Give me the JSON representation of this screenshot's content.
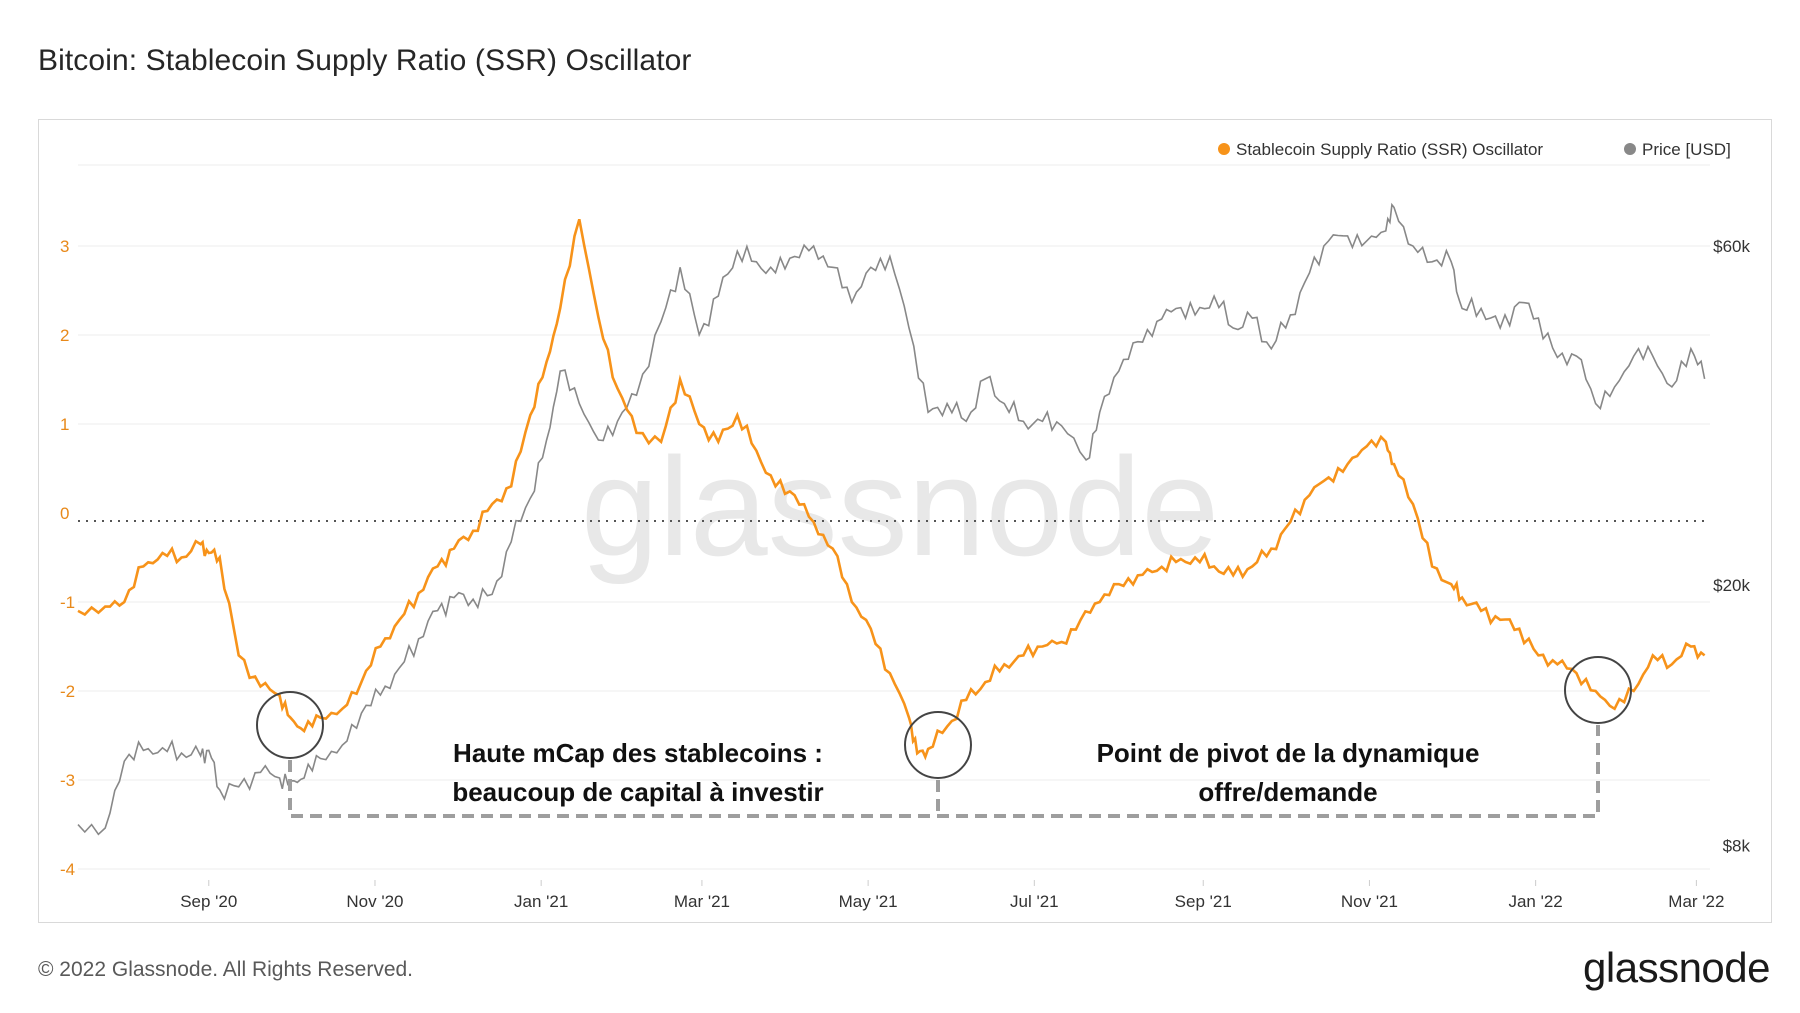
{
  "header": {
    "title": "Bitcoin: Stablecoin Supply Ratio (SSR) Oscillator"
  },
  "footer": {
    "copyright": "© 2022 Glassnode. All Rights Reserved.",
    "logo": "glassnode"
  },
  "watermark": "glassnode",
  "colors": {
    "ssr": "#f7931a",
    "price": "#888888",
    "grid": "#eeeeee",
    "annotation": "#9e9e9e"
  },
  "chart_data": {
    "type": "line",
    "title": "Bitcoin: Stablecoin Supply Ratio (SSR) Oscillator",
    "x_ticks": [
      "Sep '20",
      "Nov '20",
      "Jan '21",
      "Mar '21",
      "May '21",
      "Jul '21",
      "Sep '21",
      "Nov '21",
      "Jan '22",
      "Mar '22"
    ],
    "y_left": {
      "ticks": [
        "3",
        "2",
        "1",
        "0",
        "-1",
        "-2",
        "-3",
        "-4"
      ],
      "range": [
        -4,
        3.5
      ]
    },
    "y_right": {
      "ticks": [
        "$60k",
        "$20k",
        "$8k"
      ],
      "scale": "log",
      "range": [
        8000,
        70000
      ]
    },
    "legend": [
      {
        "label": "Stablecoin Supply Ratio (SSR) Oscillator",
        "color": "#f7931a"
      },
      {
        "label": "Price [USD]",
        "color": "#888888"
      }
    ],
    "series": [
      {
        "name": "Stablecoin Supply Ratio (SSR) Oscillator",
        "axis": "left",
        "x": [
          "2020-07-15",
          "2020-07-25",
          "2020-08-01",
          "2020-08-08",
          "2020-08-15",
          "2020-08-22",
          "2020-08-29",
          "2020-09-01",
          "2020-09-05",
          "2020-09-12",
          "2020-09-20",
          "2020-09-27",
          "2020-10-01",
          "2020-10-06",
          "2020-10-12",
          "2020-10-20",
          "2020-10-27",
          "2020-11-03",
          "2020-11-10",
          "2020-11-17",
          "2020-11-24",
          "2020-11-30",
          "2020-12-07",
          "2020-12-14",
          "2020-12-21",
          "2020-12-28",
          "2021-01-03",
          "2021-01-08",
          "2021-01-15",
          "2021-01-22",
          "2021-01-29",
          "2021-02-05",
          "2021-02-14",
          "2021-02-21",
          "2021-02-28",
          "2021-03-07",
          "2021-03-14",
          "2021-03-21",
          "2021-03-28",
          "2021-04-04",
          "2021-04-11",
          "2021-04-18",
          "2021-04-25",
          "2021-05-02",
          "2021-05-09",
          "2021-05-16",
          "2021-05-19",
          "2021-05-23",
          "2021-05-30",
          "2021-06-06",
          "2021-06-13",
          "2021-06-20",
          "2021-06-27",
          "2021-07-04",
          "2021-07-11",
          "2021-07-18",
          "2021-07-25",
          "2021-08-01",
          "2021-08-08",
          "2021-08-15",
          "2021-08-22",
          "2021-08-29",
          "2021-09-05",
          "2021-09-12",
          "2021-09-19",
          "2021-09-26",
          "2021-10-03",
          "2021-10-10",
          "2021-10-17",
          "2021-10-24",
          "2021-10-31",
          "2021-11-07",
          "2021-11-10",
          "2021-11-17",
          "2021-11-24",
          "2021-12-01",
          "2021-12-05",
          "2021-12-12",
          "2021-12-19",
          "2021-12-26",
          "2022-01-02",
          "2022-01-09",
          "2022-01-16",
          "2022-01-23",
          "2022-01-30",
          "2022-02-06",
          "2022-02-13",
          "2022-02-20",
          "2022-02-27",
          "2022-03-04"
        ],
        "values": [
          -1.1,
          -1.05,
          -1.0,
          -0.6,
          -0.45,
          -0.5,
          -0.35,
          -0.45,
          -0.5,
          -1.6,
          -1.95,
          -2.05,
          -2.3,
          -2.45,
          -2.3,
          -2.2,
          -1.9,
          -1.5,
          -1.2,
          -0.9,
          -0.6,
          -0.4,
          -0.2,
          0.1,
          0.3,
          1.1,
          1.7,
          2.3,
          3.3,
          2.2,
          1.4,
          0.9,
          0.8,
          1.5,
          1.0,
          0.8,
          1.1,
          0.7,
          0.3,
          0.2,
          -0.1,
          -0.4,
          -1.0,
          -1.3,
          -1.8,
          -2.3,
          -2.7,
          -2.65,
          -2.4,
          -2.1,
          -1.9,
          -1.7,
          -1.6,
          -1.5,
          -1.45,
          -1.2,
          -1.0,
          -0.8,
          -0.7,
          -0.65,
          -0.55,
          -0.5,
          -0.6,
          -0.7,
          -0.6,
          -0.4,
          -0.1,
          0.2,
          0.4,
          0.55,
          0.75,
          0.8,
          0.55,
          0.1,
          -0.6,
          -0.8,
          -0.95,
          -1.1,
          -1.2,
          -1.3,
          -1.6,
          -1.7,
          -1.8,
          -2.0,
          -2.2,
          -2.0,
          -1.6,
          -1.7,
          -1.5,
          -1.6
        ]
      },
      {
        "name": "Price [USD]",
        "axis": "right",
        "x": [
          "2020-07-15",
          "2020-07-25",
          "2020-08-01",
          "2020-08-08",
          "2020-08-15",
          "2020-08-22",
          "2020-08-29",
          "2020-09-01",
          "2020-09-05",
          "2020-09-12",
          "2020-09-20",
          "2020-09-27",
          "2020-10-01",
          "2020-10-06",
          "2020-10-12",
          "2020-10-20",
          "2020-10-27",
          "2020-11-03",
          "2020-11-10",
          "2020-11-17",
          "2020-11-24",
          "2020-11-30",
          "2020-12-07",
          "2020-12-14",
          "2020-12-21",
          "2020-12-28",
          "2021-01-03",
          "2021-01-08",
          "2021-01-15",
          "2021-01-22",
          "2021-01-29",
          "2021-02-05",
          "2021-02-14",
          "2021-02-21",
          "2021-02-28",
          "2021-03-07",
          "2021-03-14",
          "2021-03-21",
          "2021-03-28",
          "2021-04-04",
          "2021-04-11",
          "2021-04-18",
          "2021-04-25",
          "2021-05-02",
          "2021-05-09",
          "2021-05-16",
          "2021-05-23",
          "2021-05-30",
          "2021-06-06",
          "2021-06-13",
          "2021-06-20",
          "2021-06-27",
          "2021-07-04",
          "2021-07-11",
          "2021-07-20",
          "2021-07-25",
          "2021-08-01",
          "2021-08-08",
          "2021-08-15",
          "2021-08-22",
          "2021-08-29",
          "2021-09-05",
          "2021-09-12",
          "2021-09-19",
          "2021-09-26",
          "2021-10-03",
          "2021-10-10",
          "2021-10-17",
          "2021-10-24",
          "2021-10-31",
          "2021-11-07",
          "2021-11-10",
          "2021-11-17",
          "2021-11-24",
          "2021-12-01",
          "2021-12-05",
          "2021-12-12",
          "2021-12-19",
          "2021-12-26",
          "2022-01-02",
          "2022-01-09",
          "2022-01-16",
          "2022-01-23",
          "2022-01-30",
          "2022-02-06",
          "2022-02-13",
          "2022-02-20",
          "2022-02-27",
          "2022-03-04"
        ],
        "values": [
          9200,
          9100,
          11300,
          11700,
          11800,
          11600,
          11500,
          11700,
          10300,
          10400,
          10900,
          10700,
          10600,
          10700,
          11400,
          11900,
          13200,
          14000,
          15300,
          16800,
          18400,
          19200,
          19100,
          19400,
          23000,
          26500,
          32000,
          40000,
          36000,
          32000,
          34000,
          37000,
          47000,
          56000,
          45000,
          51000,
          59000,
          57000,
          55000,
          58000,
          60000,
          56000,
          50000,
          56000,
          58000,
          46000,
          35000,
          36000,
          34000,
          39000,
          36000,
          34000,
          34000,
          33500,
          30000,
          35000,
          40000,
          44000,
          47000,
          49000,
          48000,
          51000,
          46000,
          47500,
          43000,
          48000,
          55000,
          61000,
          62000,
          61000,
          63000,
          68000,
          60000,
          57000,
          57000,
          49000,
          49000,
          46000,
          50000,
          47500,
          41800,
          42000,
          36000,
          38000,
          42000,
          42000,
          38000,
          43000,
          39000
        ]
      }
    ],
    "annotations": [
      {
        "text_line1": "Haute mCap des stablecoins :",
        "text_line2": "beaucoup de capital à investir"
      },
      {
        "text_line1": "Point de pivot de la dynamique",
        "text_line2": "offre/demande"
      }
    ]
  }
}
